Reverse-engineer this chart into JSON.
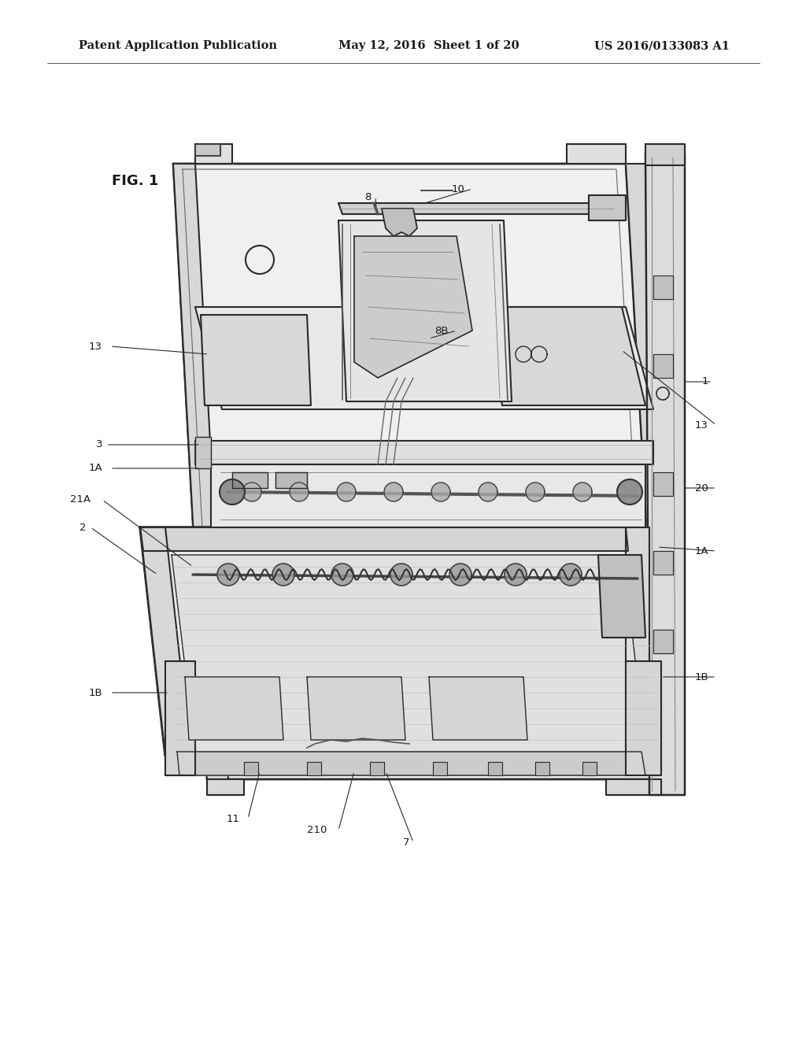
{
  "bg_color": "#ffffff",
  "header_left": "Patent Application Publication",
  "header_mid": "May 12, 2016  Sheet 1 of 20",
  "header_right": "US 2016/0133083 A1",
  "fig_label": "FIG. 1",
  "line_color": "#2a2a2a",
  "text_color": "#1a1a1a",
  "header_fontsize": 10.5,
  "fig_label_fontsize": 13
}
